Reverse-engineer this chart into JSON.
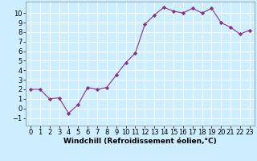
{
  "x": [
    0,
    1,
    2,
    3,
    4,
    5,
    6,
    7,
    8,
    9,
    10,
    11,
    12,
    13,
    14,
    15,
    16,
    17,
    18,
    19,
    20,
    21,
    22,
    23
  ],
  "y": [
    2.0,
    2.0,
    1.0,
    1.1,
    -0.5,
    0.4,
    2.2,
    2.0,
    2.2,
    3.5,
    4.8,
    5.8,
    8.8,
    9.8,
    10.6,
    10.2,
    10.0,
    10.5,
    10.0,
    10.5,
    9.0,
    8.5,
    7.8,
    8.2
  ],
  "line_color": "#883388",
  "marker": "D",
  "marker_size": 2.2,
  "bg_color": "#cceeff",
  "grid_color": "#ffffff",
  "xlabel": "Windchill (Refroidissement éolien,°C)",
  "xlabel_fontsize": 6.5,
  "tick_fontsize": 6,
  "ylim": [
    -1.8,
    11.2
  ],
  "xlim": [
    -0.5,
    23.5
  ],
  "yticks": [
    -1,
    0,
    1,
    2,
    3,
    4,
    5,
    6,
    7,
    8,
    9,
    10
  ],
  "xticks": [
    0,
    1,
    2,
    3,
    4,
    5,
    6,
    7,
    8,
    9,
    10,
    11,
    12,
    13,
    14,
    15,
    16,
    17,
    18,
    19,
    20,
    21,
    22,
    23
  ]
}
